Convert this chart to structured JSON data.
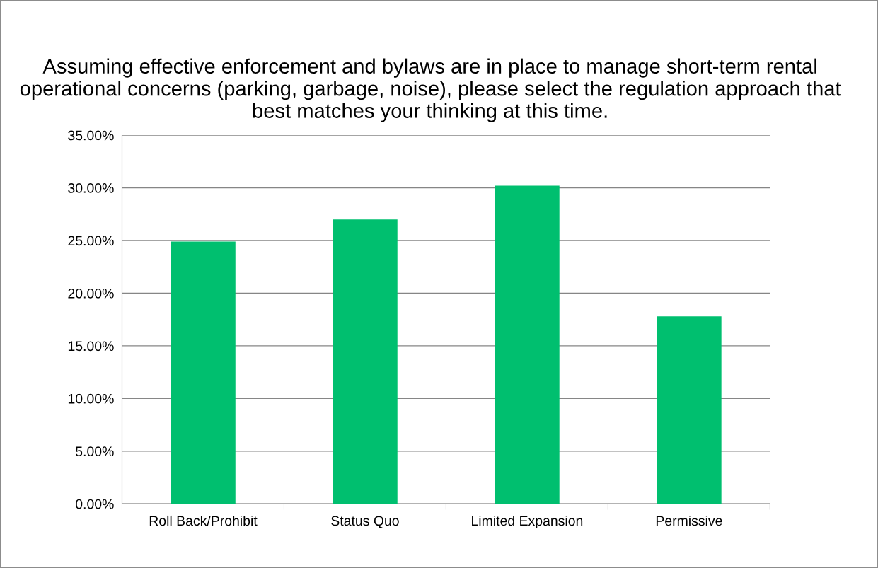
{
  "chart_data": {
    "type": "bar",
    "title": "Assuming effective enforcement and bylaws are in place to manage short-term rental operational concerns (parking, garbage, noise), please select the regulation approach that best matches your thinking at this time.",
    "categories": [
      "Roll Back/Prohibit",
      "Status Quo",
      "Limited Expansion",
      "Permissive"
    ],
    "values": [
      24.9,
      27.0,
      30.2,
      17.8
    ],
    "color": "#00bf6f",
    "ylim": [
      0,
      35
    ],
    "yticks": [
      {
        "value": 0,
        "label": "0.00%"
      },
      {
        "value": 5,
        "label": "5.00%"
      },
      {
        "value": 10,
        "label": "10.00%"
      },
      {
        "value": 15,
        "label": "15.00%"
      },
      {
        "value": 20,
        "label": "20.00%"
      },
      {
        "value": 25,
        "label": "25.00%"
      },
      {
        "value": 30,
        "label": "30.00%"
      },
      {
        "value": 35,
        "label": "35.00%"
      }
    ],
    "grid": "y",
    "legend": false
  }
}
